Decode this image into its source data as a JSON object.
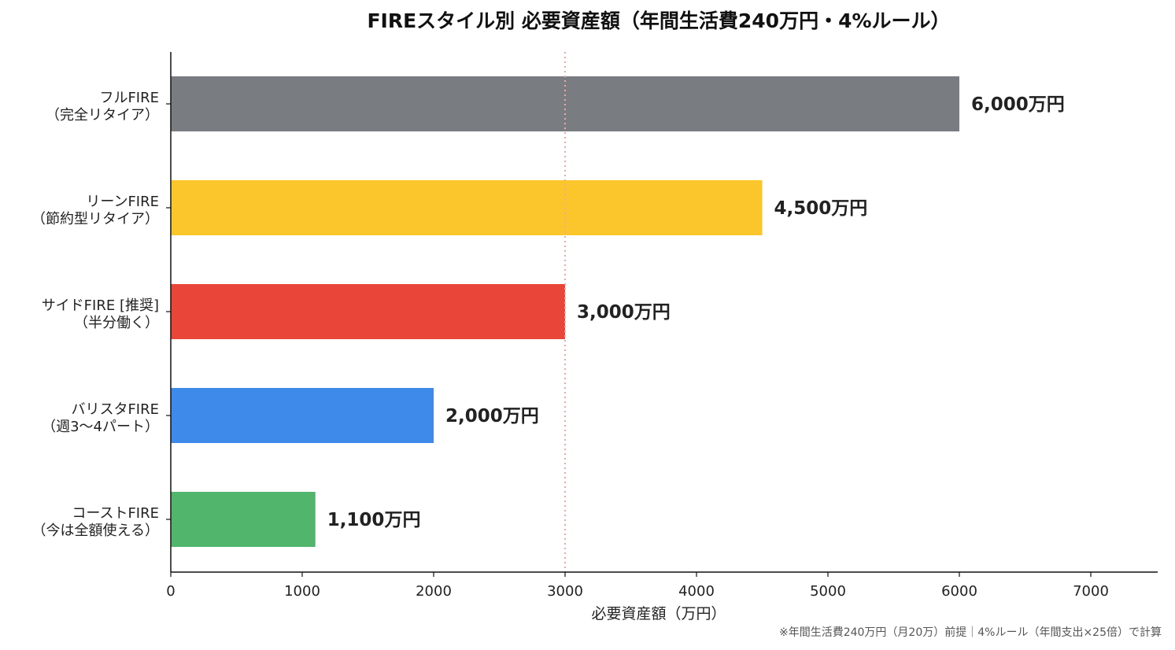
{
  "chart_data": {
    "type": "bar",
    "orientation": "horizontal",
    "title": "FIREスタイル別 必要資産額（年間生活費240万円・4%ルール）",
    "xlabel": "必要資産額（万円）",
    "xlim": [
      0,
      7500
    ],
    "xticks": [
      0,
      1000,
      2000,
      3000,
      4000,
      5000,
      6000,
      7000
    ],
    "reference_line": {
      "x": 3000,
      "style": "dotted",
      "color": "#f4a6a0"
    },
    "categories": [
      {
        "line1": "フルFIRE",
        "line2": "（完全リタイア）"
      },
      {
        "line1": "リーンFIRE",
        "line2": "（節約型リタイア）"
      },
      {
        "line1": "サイドFIRE [推奨]",
        "line2": "（半分働く）"
      },
      {
        "line1": "バリスタFIRE",
        "line2": "（週3〜4パート）"
      },
      {
        "line1": "コーストFIRE",
        "line2": "（今は全額使える）"
      }
    ],
    "values": [
      6000,
      4500,
      3000,
      2000,
      1100
    ],
    "value_labels": [
      "6,000万円",
      "4,500万円",
      "3,000万円",
      "2,000万円",
      "1,100万円"
    ],
    "colors": [
      "#797c81",
      "#fbc52c",
      "#e94539",
      "#3d8aea",
      "#52b56c"
    ],
    "grid": false
  },
  "footnote": "※年間生活費240万円（月20万）前提｜4%ルール（年間支出×25倍）で計算"
}
